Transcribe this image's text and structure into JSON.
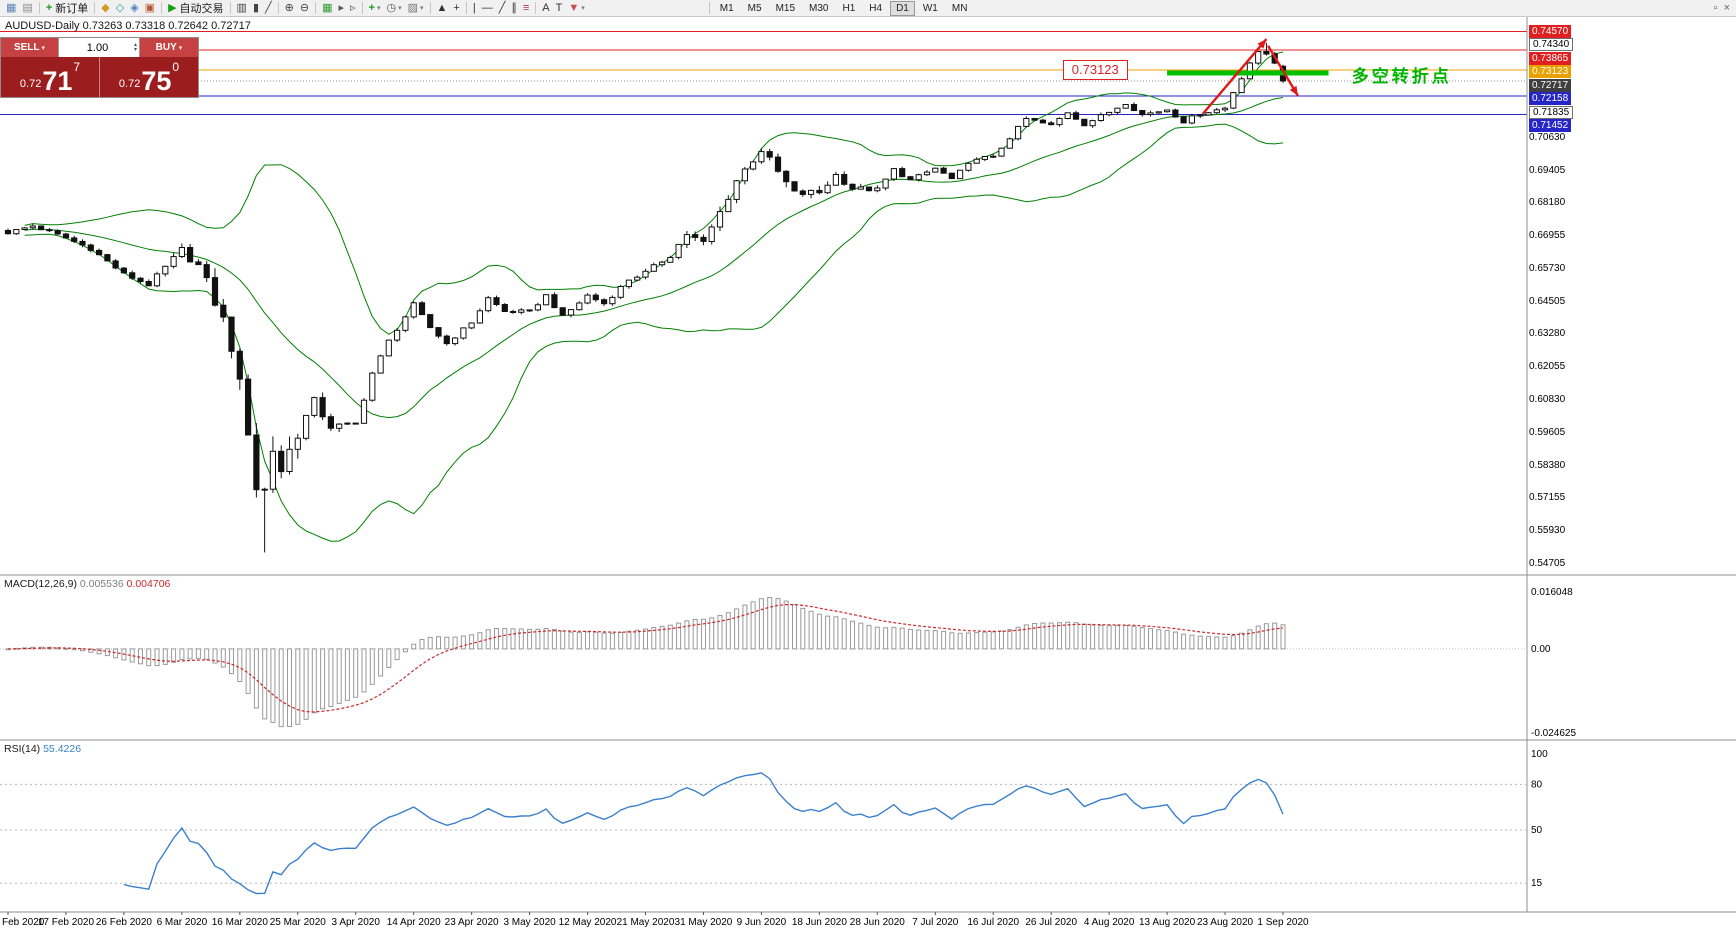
{
  "toolbar": {
    "groups": [
      {
        "items": [
          {
            "name": "new-chart",
            "glyph": "▦",
            "color": "#5b84b8"
          },
          {
            "name": "chart-profiles",
            "glyph": "▤",
            "color": "#8a8a8a"
          }
        ]
      },
      {
        "items": [
          {
            "name": "new-order",
            "glyph": "+",
            "color": "#189a1f",
            "label": "新订单",
            "bold": true
          }
        ]
      },
      {
        "items": [
          {
            "name": "market-watch",
            "glyph": "◆",
            "color": "#d39a1e"
          },
          {
            "name": "data-window",
            "glyph": "◇",
            "color": "#2f9a9a"
          },
          {
            "name": "navigator",
            "glyph": "◈",
            "color": "#4d7fc1"
          },
          {
            "name": "terminal",
            "glyph": "▣",
            "color": "#b25b35"
          }
        ]
      },
      {
        "items": [
          {
            "name": "autotrading",
            "glyph": "▶",
            "color": "#12a012",
            "label": "自动交易"
          }
        ]
      },
      {
        "items": [
          {
            "name": "bar-chart-mode",
            "glyph": "▥",
            "color": "#444444"
          },
          {
            "name": "candlestick-mode",
            "glyph": "▮",
            "color": "#444444"
          },
          {
            "name": "line-chart-mode",
            "glyph": "╱",
            "color": "#444444"
          }
        ]
      },
      {
        "items": [
          {
            "name": "zoom-in",
            "glyph": "⊕",
            "color": "#444444"
          },
          {
            "name": "zoom-out",
            "glyph": "⊖",
            "color": "#444444"
          }
        ]
      },
      {
        "items": [
          {
            "name": "tile-windows",
            "glyph": "▦",
            "color": "#2f9a2f"
          },
          {
            "name": "auto-scroll",
            "glyph": "▸",
            "color": "#555555"
          },
          {
            "name": "chart-shift",
            "glyph": "▹",
            "color": "#555555"
          }
        ]
      },
      {
        "items": [
          {
            "name": "indicators",
            "glyph": "+",
            "color": "#189a1f",
            "caret": true,
            "bold": true
          },
          {
            "name": "periods",
            "glyph": "◷",
            "color": "#555555",
            "caret": true
          },
          {
            "name": "templates",
            "glyph": "▨",
            "color": "#777777",
            "caret": true
          }
        ]
      },
      {
        "items": [
          {
            "name": "cursor",
            "glyph": "▲",
            "color": "#333333"
          },
          {
            "name": "crosshair",
            "glyph": "+",
            "color": "#333333"
          }
        ]
      },
      {
        "items": [
          {
            "name": "vertical-line",
            "glyph": "|",
            "color": "#333333"
          },
          {
            "name": "horizontal-line",
            "glyph": "—",
            "color": "#333333"
          },
          {
            "name": "trendline",
            "glyph": "╱",
            "color": "#333333"
          },
          {
            "name": "equidistant-channel",
            "glyph": "∥",
            "color": "#333333"
          },
          {
            "name": "fibonacci-retracement",
            "glyph": "≡",
            "color": "#b03060"
          }
        ]
      },
      {
        "items": [
          {
            "name": "text-tool",
            "glyph": "A",
            "color": "#333333"
          },
          {
            "name": "label-tool",
            "glyph": "T",
            "color": "#333333"
          },
          {
            "name": "arrows-tool",
            "glyph": "▼",
            "color": "#c05050",
            "caret": true
          }
        ]
      }
    ],
    "timeframes": {
      "items": [
        "M1",
        "M5",
        "M15",
        "M30",
        "H1",
        "H4",
        "D1",
        "W1",
        "MN"
      ],
      "active": "D1"
    },
    "window_controls": [
      {
        "name": "restore-window",
        "glyph": "▫"
      },
      {
        "name": "close-window",
        "glyph": "×"
      }
    ]
  },
  "chart": {
    "title": "AUDUSD-Daily  0.73263 0.73318 0.72642 0.72717",
    "trade_panel": {
      "sell_label": "SELL",
      "buy_label": "BUY",
      "volume": "1.00",
      "sell_price_small": "0.72",
      "sell_price_big": "71",
      "sell_price_sup": "7",
      "buy_price_small": "0.72",
      "buy_price_big": "75",
      "buy_price_sup": "0"
    }
  },
  "chart_data": {
    "type": "candlestick",
    "symbol": "AUDUSD",
    "period": "Daily",
    "last_bar": {
      "open": 0.73263,
      "high": 0.73318,
      "low": 0.72642,
      "close": 0.72717
    },
    "price_axis": {
      "max": 0.7488,
      "min": 0.5448,
      "regular_ticks": [
        "0.70630",
        "0.69405",
        "0.68180",
        "0.66955",
        "0.65730",
        "0.64505",
        "0.63280",
        "0.62055",
        "0.60830",
        "0.59605",
        "0.58380",
        "0.57155",
        "0.55930",
        "0.54705"
      ]
    },
    "level_lines": [
      {
        "price": 0.7457,
        "label": "0.74570",
        "style": "red",
        "line": true
      },
      {
        "price": 0.7434,
        "label": "0.74340",
        "style": "plain",
        "line": false
      },
      {
        "price": 0.73865,
        "label": "0.73865",
        "style": "red",
        "line": true
      },
      {
        "price": 0.73123,
        "label": "0.73123",
        "style": "orange",
        "line": true
      },
      {
        "price": 0.72717,
        "label": "0.72717",
        "style": "current",
        "line": true,
        "dotted": true
      },
      {
        "price": 0.72158,
        "label": "0.72158",
        "style": "blue",
        "line": true
      },
      {
        "price": 0.71835,
        "label": "0.71835",
        "style": "plain",
        "line": false
      },
      {
        "price": 0.71452,
        "label": "0.71452",
        "style": "blue",
        "line": true
      }
    ],
    "style_colors": {
      "red": "#e02020",
      "orange": "#e8a200",
      "blue": "#2626c8",
      "current": "#3f3f3f",
      "bull_fill": "#ffffff",
      "bear_fill": "#111111",
      "candle_border": "#111111",
      "bollinger": "#008000"
    },
    "candles": {
      "count": 155,
      "close_keypoints": [
        [
          0,
          0.6705
        ],
        [
          3,
          0.673
        ],
        [
          7,
          0.6685
        ],
        [
          10,
          0.6645
        ],
        [
          14,
          0.655
        ],
        [
          17,
          0.651
        ],
        [
          21,
          0.664
        ],
        [
          23,
          0.658
        ],
        [
          25,
          0.645
        ],
        [
          27,
          0.629
        ],
        [
          28,
          0.612
        ],
        [
          29,
          0.598
        ],
        [
          30,
          0.576
        ],
        [
          31,
          0.574
        ],
        [
          32,
          0.59
        ],
        [
          33,
          0.582
        ],
        [
          35,
          0.596
        ],
        [
          37,
          0.607
        ],
        [
          39,
          0.598
        ],
        [
          42,
          0.599
        ],
        [
          44,
          0.618
        ],
        [
          46,
          0.63
        ],
        [
          49,
          0.6436
        ],
        [
          51,
          0.635
        ],
        [
          53,
          0.629
        ],
        [
          56,
          0.637
        ],
        [
          58,
          0.646
        ],
        [
          60,
          0.641
        ],
        [
          63,
          0.641
        ],
        [
          65,
          0.647
        ],
        [
          67,
          0.639
        ],
        [
          70,
          0.647
        ],
        [
          72,
          0.644
        ],
        [
          75,
          0.653
        ],
        [
          77,
          0.6555
        ],
        [
          80,
          0.662
        ],
        [
          82,
          0.67
        ],
        [
          84,
          0.6665
        ],
        [
          86,
          0.678
        ],
        [
          88,
          0.69
        ],
        [
          90,
          0.698
        ],
        [
          91,
          0.7015
        ],
        [
          93,
          0.693
        ],
        [
          95,
          0.685
        ],
        [
          98,
          0.6855
        ],
        [
          100,
          0.692
        ],
        [
          102,
          0.687
        ],
        [
          105,
          0.6865
        ],
        [
          107,
          0.694
        ],
        [
          109,
          0.69
        ],
        [
          112,
          0.6945
        ],
        [
          114,
          0.6905
        ],
        [
          117,
          0.6985
        ],
        [
          119,
          0.6985
        ],
        [
          121,
          0.706
        ],
        [
          123,
          0.713
        ],
        [
          126,
          0.7105
        ],
        [
          128,
          0.7155
        ],
        [
          130,
          0.711
        ],
        [
          133,
          0.7155
        ],
        [
          135,
          0.719
        ],
        [
          137,
          0.7145
        ],
        [
          140,
          0.7165
        ],
        [
          142,
          0.712
        ],
        [
          144,
          0.715
        ],
        [
          147,
          0.717
        ],
        [
          148,
          0.723
        ],
        [
          150,
          0.734
        ],
        [
          151,
          0.7376
        ],
        [
          152,
          0.7373
        ],
        [
          153,
          0.7342
        ],
        [
          154,
          0.72717
        ]
      ],
      "anchor_high": [
        [
          152,
          0.7414
        ]
      ],
      "anchor_low": [
        [
          31,
          0.551
        ]
      ]
    },
    "bollinger": {
      "period": 20,
      "deviation": 2
    },
    "macd": {
      "name": "MACD(12,26,9)",
      "value_main": "0.005536",
      "value_signal": "0.004706",
      "axis_max": "0.016048",
      "axis_zero": "0.00",
      "axis_min": "-0.024625",
      "histogram_color": "#9a9a9a",
      "signal_color": "#cc2a2a"
    },
    "rsi": {
      "name": "RSI(14)",
      "value": "55.4226",
      "line_color": "#3c80cc",
      "levels": [
        80,
        50,
        15
      ],
      "axis_labels": [
        "100",
        "80",
        "50",
        "15"
      ]
    },
    "date_ticks": [
      "Feb 2020",
      "17 Feb 2020",
      "26 Feb 2020",
      "6 Mar 2020",
      "16 Mar 2020",
      "25 Mar 2020",
      "3 Apr 2020",
      "14 Apr 2020",
      "23 Apr 2020",
      "3 May 2020",
      "12 May 2020",
      "21 May 2020",
      "31 May 2020",
      "9 Jun 2020",
      "18 Jun 2020",
      "28 Jun 2020",
      "7 Jul 2020",
      "16 Jul 2020",
      "26 Jul 2020",
      "4 Aug 2020",
      "13 Aug 2020",
      "23 Aug 2020",
      "1 Sep 2020"
    ],
    "annotations": {
      "price_callout": {
        "text": "0.73123",
        "index": 127.4,
        "price": 0.73123
      },
      "support_segment": {
        "from_index": 140,
        "to_index": 159.5,
        "price": 0.7301,
        "color": "#00c000"
      },
      "arrow_up": {
        "from": [
          144.3,
          0.7148
        ],
        "to": [
          152.0,
          0.7428
        ],
        "color": "#e01818"
      },
      "arrow_down": {
        "from": [
          152.2,
          0.7403
        ],
        "to": [
          155.8,
          0.7216
        ],
        "color": "#e01818"
      },
      "turning_point": {
        "text": "多空转折点",
        "index": 162.3,
        "price": 0.7303,
        "color": "#00b400"
      }
    }
  }
}
